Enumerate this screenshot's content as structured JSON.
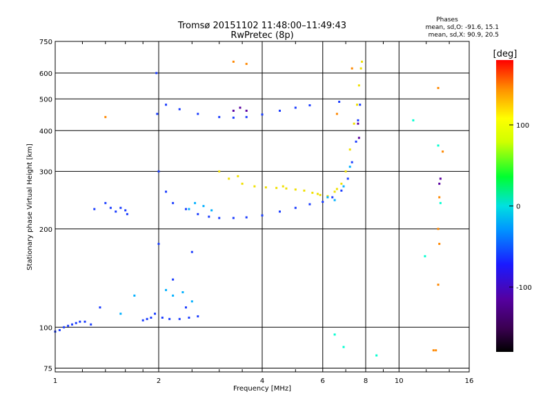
{
  "chart_data": {
    "type": "scatter",
    "title": "Tromsø 20151102 11:48:00–11:49:43",
    "subtitle": "RwPretec (8p)",
    "xlabel": "Frequency [MHz]",
    "ylabel": "Stationary phase Virtual Height [km]",
    "x_scale": "log",
    "y_scale": "log",
    "xlim": [
      1,
      16
    ],
    "ylim": [
      73,
      750
    ],
    "x_ticks": [
      1,
      2,
      4,
      6,
      8,
      10,
      16
    ],
    "x_tick_labels": [
      "1",
      "2",
      "4",
      "6",
      "8",
      "10",
      "16"
    ],
    "y_ticks": [
      75,
      100,
      200,
      300,
      400,
      500,
      600,
      750
    ],
    "y_tick_labels": [
      "75",
      "100",
      "200",
      "300",
      "400",
      "500",
      "600",
      "750"
    ],
    "grid": true,
    "stats": {
      "heading": "Phases",
      "line1": "mean, sd,O: -91.6, 15.1",
      "line2": "mean, sd,X:  90.9, 20.5"
    },
    "colorbar": {
      "unit": "[deg]",
      "range": [
        -180,
        180
      ],
      "ticks": [
        100,
        0,
        -100
      ],
      "tick_labels": [
        "100",
        "0",
        "-100"
      ]
    },
    "series": [
      {
        "points": [
          [
            1.0,
            97
          ],
          [
            1.03,
            98
          ],
          [
            1.06,
            100
          ],
          [
            1.09,
            101
          ],
          [
            1.12,
            102
          ],
          [
            1.15,
            103
          ],
          [
            1.18,
            104
          ],
          [
            1.22,
            104
          ],
          [
            1.27,
            102
          ],
          [
            1.35,
            115
          ],
          [
            1.3,
            230
          ],
          [
            1.4,
            240
          ],
          [
            1.45,
            232
          ],
          [
            1.5,
            226
          ],
          [
            1.55,
            232
          ],
          [
            1.6,
            228
          ],
          [
            1.62,
            222
          ],
          [
            1.8,
            105
          ],
          [
            1.85,
            106
          ],
          [
            1.9,
            107
          ],
          [
            1.95,
            110
          ],
          [
            2.0,
            180
          ],
          [
            2.0,
            300
          ],
          [
            1.97,
            600
          ],
          [
            1.98,
            450
          ],
          [
            2.05,
            107
          ],
          [
            2.15,
            106
          ],
          [
            2.3,
            106
          ],
          [
            2.45,
            107
          ],
          [
            2.6,
            108
          ],
          [
            2.1,
            260
          ],
          [
            2.2,
            240
          ],
          [
            2.4,
            230
          ],
          [
            2.6,
            222
          ],
          [
            2.8,
            218
          ],
          [
            3.0,
            216
          ],
          [
            3.3,
            216
          ],
          [
            3.6,
            217
          ],
          [
            4.0,
            220
          ],
          [
            4.5,
            226
          ],
          [
            5.0,
            232
          ],
          [
            5.5,
            238
          ],
          [
            6.0,
            242
          ],
          [
            6.4,
            250
          ],
          [
            6.8,
            262
          ],
          [
            7.1,
            285
          ],
          [
            7.3,
            320
          ],
          [
            7.5,
            370
          ],
          [
            7.6,
            430
          ],
          [
            7.7,
            480
          ],
          [
            2.1,
            480
          ],
          [
            2.3,
            465
          ],
          [
            2.6,
            450
          ],
          [
            3.0,
            440
          ],
          [
            3.3,
            438
          ],
          [
            3.6,
            440
          ],
          [
            4.0,
            448
          ],
          [
            4.5,
            460
          ],
          [
            5.0,
            470
          ],
          [
            5.5,
            478
          ],
          [
            6.7,
            490
          ],
          [
            2.5,
            170
          ],
          [
            2.2,
            140
          ],
          [
            2.4,
            115
          ]
        ]
      },
      {
        "points": [
          [
            3.0,
            300
          ],
          [
            3.2,
            285
          ],
          [
            3.5,
            275
          ],
          [
            3.8,
            270
          ],
          [
            4.1,
            268
          ],
          [
            4.4,
            267
          ],
          [
            4.7,
            266
          ],
          [
            5.0,
            264
          ],
          [
            5.3,
            262
          ],
          [
            5.6,
            258
          ],
          [
            5.9,
            254
          ],
          [
            6.2,
            252
          ],
          [
            6.5,
            260
          ],
          [
            6.8,
            275
          ],
          [
            7.0,
            300
          ],
          [
            7.2,
            350
          ],
          [
            7.4,
            420
          ],
          [
            7.55,
            480
          ],
          [
            7.65,
            550
          ],
          [
            7.75,
            620
          ],
          [
            7.8,
            650
          ],
          [
            3.4,
            290
          ],
          [
            4.6,
            270
          ],
          [
            5.8,
            256
          ],
          [
            6.6,
            265
          ]
        ]
      },
      {
        "points": [
          [
            2.1,
            130
          ],
          [
            2.2,
            125
          ],
          [
            2.35,
            128
          ],
          [
            2.5,
            120
          ],
          [
            2.45,
            230
          ],
          [
            2.55,
            240
          ],
          [
            2.7,
            235
          ],
          [
            2.85,
            228
          ],
          [
            6.2,
            250
          ],
          [
            6.5,
            245
          ],
          [
            6.9,
            270
          ],
          [
            7.2,
            310
          ],
          [
            1.55,
            110
          ],
          [
            1.7,
            125
          ]
        ]
      },
      {
        "points": [
          [
            1.4,
            440
          ],
          [
            3.3,
            650
          ],
          [
            3.6,
            640
          ],
          [
            6.6,
            450
          ],
          [
            7.3,
            620
          ],
          [
            13.1,
            250
          ],
          [
            13.0,
            200
          ],
          [
            13.1,
            180
          ],
          [
            13.0,
            135
          ],
          [
            13.4,
            345
          ],
          [
            13.0,
            540
          ],
          [
            12.8,
            85
          ],
          [
            12.6,
            85
          ]
        ]
      },
      {
        "points": [
          [
            6.5,
            95
          ],
          [
            6.9,
            87
          ],
          [
            8.6,
            82
          ],
          [
            11.0,
            430
          ],
          [
            11.9,
            165
          ],
          [
            13.0,
            360
          ],
          [
            13.2,
            240
          ]
        ]
      },
      {
        "points": [
          [
            3.3,
            460
          ],
          [
            3.45,
            470
          ],
          [
            3.6,
            460
          ],
          [
            7.6,
            420
          ],
          [
            7.65,
            380
          ],
          [
            13.2,
            285
          ],
          [
            13.1,
            275
          ]
        ]
      }
    ]
  }
}
